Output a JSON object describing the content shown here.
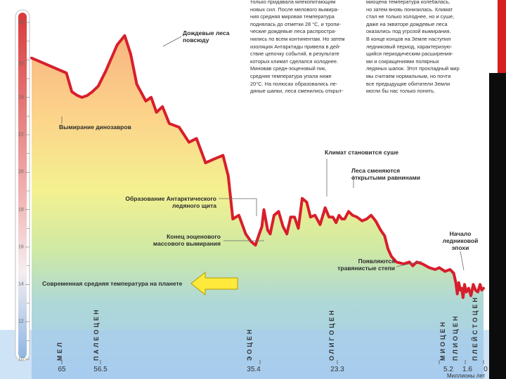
{
  "chart_data": {
    "type": "line",
    "title": "",
    "xlabel": "Миллионы лет",
    "ylabel": "",
    "x_ticks": [
      65,
      56.5,
      35.4,
      23.3,
      5.2,
      1.6,
      0
    ],
    "x_tick_labels": [
      "65",
      "56.5",
      "35.4",
      "23.3",
      "5.2",
      "1.6",
      "0"
    ],
    "y_ticks": [
      10,
      12,
      14,
      16,
      18,
      20,
      22,
      24,
      26,
      28
    ],
    "y_tick_labels": [
      "10°",
      "12",
      "14",
      "16",
      "18",
      "20",
      "22",
      "24",
      "26",
      "28"
    ],
    "xlim": [
      65,
      0
    ],
    "ylim": [
      10,
      28.5
    ],
    "grid": false,
    "series": [
      {
        "values_note": "",
        "x": [
          65.3,
          64.0,
          62.8,
          61.6,
          60.6,
          59.4,
          58.3,
          57.0,
          55.8,
          54.3,
          53.3,
          52.5,
          51.7,
          50.5,
          49.8,
          49.1,
          48.3,
          47.4,
          46.1,
          44.8,
          43.8,
          42.6,
          41.5,
          40.3,
          39.6,
          39.0,
          38.2,
          37.3,
          36.6,
          36.0,
          35.5,
          35.1,
          34.8,
          34.2,
          33.8,
          33.2,
          32.5,
          31.8,
          31.2,
          30.6,
          30.0,
          29.4,
          28.8,
          28.1,
          27.5,
          26.8,
          26.0,
          25.2,
          24.6,
          24.0,
          23.5,
          23.0,
          22.5,
          22.0,
          21.3,
          20.6,
          19.8,
          18.9,
          18.1,
          17.3,
          16.5,
          15.6,
          14.9,
          14.3,
          13.7,
          12.8,
          11.5,
          10.5,
          9.9,
          9.2,
          8.2,
          7.0,
          5.9,
          5.2,
          4.4,
          3.7,
          3.2,
          2.9,
          2.7,
          2.5,
          2.3,
          2.1,
          1.9,
          1.7,
          1.5,
          1.3,
          1.1,
          0.9,
          0.7,
          0.5,
          0.3,
          0.15,
          0
        ],
        "values": [
          26.1,
          25.3,
          24.3,
          24.1,
          24.0,
          24.1,
          24.3,
          24.6,
          25.4,
          26.8,
          27.3,
          26.3,
          24.7,
          23.8,
          24.0,
          23.2,
          23.5,
          22.6,
          22.4,
          21.6,
          21.8,
          20.5,
          20.7,
          20.9,
          19.8,
          17.5,
          17.7,
          16.7,
          16.3,
          16.1,
          16.7,
          17.1,
          18.0,
          16.9,
          16.7,
          17.7,
          17.9,
          17.1,
          16.7,
          17.6,
          17.6,
          17.0,
          18.6,
          18.4,
          17.6,
          17.7,
          17.2,
          18.1,
          17.6,
          17.6,
          17.3,
          17.7,
          17.5,
          17.5,
          17.9,
          17.7,
          17.6,
          17.4,
          17.5,
          17.7,
          17.4,
          16.9,
          16.6,
          15.9,
          15.5,
          15.2,
          15.1,
          15.2,
          15.0,
          15.2,
          15.1,
          14.9,
          14.8,
          14.9,
          14.7,
          14.8,
          14.6,
          14.1,
          13.5,
          14.1,
          13.7,
          13.8,
          13.3,
          14.0,
          13.6,
          13.8,
          13.4,
          14.0,
          13.7,
          13.6,
          14.0,
          13.7,
          13.8
        ],
        "color": "#d81e2c"
      }
    ],
    "eras": [
      "МЕЛ",
      "ПАЛЕОЦЕН",
      "ЭОЦЕН",
      "ОЛИГОЦЕН",
      "МИОЦЕН",
      "ПЛИОЦЕН",
      "ПЛЕЙСТОЦЕН"
    ],
    "annotations": [
      {
        "id": "rainforests",
        "lines": [
          "Дождевые леса",
          "повсюду"
        ]
      },
      {
        "id": "dinosaurs",
        "lines": [
          "Вымирание динозавров"
        ]
      },
      {
        "id": "drier",
        "lines": [
          "Климат становится суше"
        ]
      },
      {
        "id": "plains",
        "lines": [
          "Леса сменяются",
          "открытыми равнинами"
        ]
      },
      {
        "id": "antarctic",
        "lines": [
          "Образование Антарктического",
          "ледяного щита"
        ]
      },
      {
        "id": "eocene_end",
        "lines": [
          "Конец эоценового",
          "массового вымирания"
        ]
      },
      {
        "id": "grass",
        "lines": [
          "Появляются",
          "травянистые степи"
        ]
      },
      {
        "id": "ice_age",
        "lines": [
          "Начало",
          "ледниковой",
          "эпохи"
        ]
      },
      {
        "id": "modern_avg",
        "lines": [
          "Современная средняя температура на планете"
        ]
      }
    ],
    "colors": {
      "line": "#d81e2c",
      "grad_top": "#f6a87e",
      "grad_mid1": "#fcd28a",
      "grad_mid2": "#f4f190",
      "grad_mid3": "#cfe9a4",
      "grad_low": "#aed8d8",
      "grad_bottom": "#a7ccef",
      "arrow": "#ffea3c",
      "thermo_red": "#d83a3a",
      "thermo_blue": "#8fb6e2"
    }
  },
  "text_top": {
    "col1": [
      "только придавала млекопитающим",
      "новых сил. После мелового вымира-",
      "ния средняя мировая температура",
      "поднялась до отметки 28 °С, и тропи-",
      "ческие дождевые леса распростра-",
      "нились по всем континентам. Но затем",
      "изоляция Антарктиды привела в дей-",
      "ствие цепочку событий, в результате",
      "которых климат сделался холоднее.",
      "Миновав средн-эоценовый пик,",
      "средняя температура упала ниже",
      "20°С. На полюсах образовались ле-",
      "дяные шапки, леса сменились открыт-"
    ],
    "col2": [
      "миоцена температура колебалась,",
      "но затем вновь понизилась. Климат",
      "стал не только холоднее, но и суше,",
      "даже на экваторе дождевые леса",
      "оказались под угрозой вымирания.",
      "В конце концов на Земле наступил",
      "ледниковый период, характеризую-",
      "щийся периодическим расширения-",
      "ми и сокращениями полярных",
      "ледяных шапок. Этот прохладный мир",
      "мы считаем нормальным, но почти",
      "все предыдущие обитатели Земли",
      "могли бы нас только понять."
    ]
  }
}
